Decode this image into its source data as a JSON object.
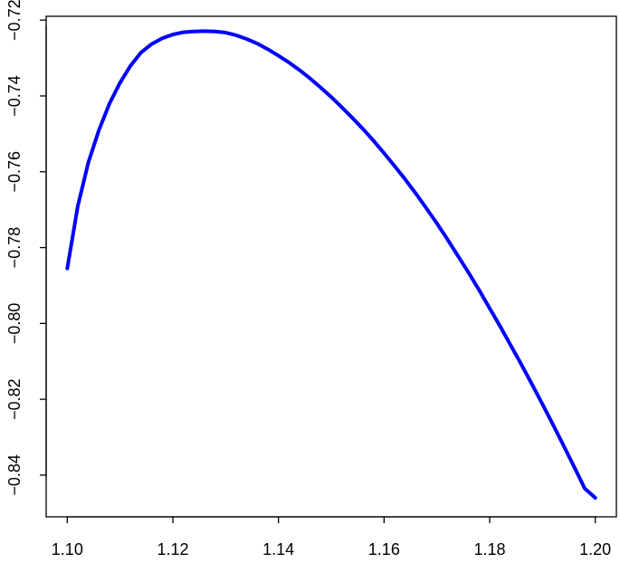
{
  "chart_data": {
    "type": "line",
    "title": "",
    "xlabel": "",
    "ylabel": "",
    "xlim": [
      1.096,
      1.204
    ],
    "ylim": [
      -0.851,
      -0.719
    ],
    "x_ticks": [
      1.1,
      1.12,
      1.14,
      1.16,
      1.18,
      1.2
    ],
    "x_tick_labels": [
      "1.10",
      "1.12",
      "1.14",
      "1.16",
      "1.18",
      "1.20"
    ],
    "y_ticks": [
      -0.72,
      -0.74,
      -0.76,
      -0.78,
      -0.8,
      -0.82,
      -0.84
    ],
    "y_tick_labels": [
      "−0.72",
      "−0.74",
      "−0.76",
      "−0.78",
      "−0.80",
      "−0.82",
      "−0.84"
    ],
    "grid": false,
    "legend": "none",
    "series": [
      {
        "color": "#0000ff",
        "x": [
          1.1,
          1.102,
          1.104,
          1.106,
          1.108,
          1.11,
          1.112,
          1.114,
          1.116,
          1.118,
          1.12,
          1.122,
          1.124,
          1.126,
          1.128,
          1.13,
          1.132,
          1.134,
          1.136,
          1.138,
          1.14,
          1.142,
          1.144,
          1.146,
          1.148,
          1.15,
          1.152,
          1.154,
          1.156,
          1.158,
          1.16,
          1.162,
          1.164,
          1.166,
          1.168,
          1.17,
          1.172,
          1.174,
          1.176,
          1.178,
          1.18,
          1.182,
          1.184,
          1.186,
          1.188,
          1.19,
          1.192,
          1.194,
          1.196,
          1.198,
          1.2
        ],
        "values": [
          -0.7855,
          -0.769,
          -0.7575,
          -0.749,
          -0.742,
          -0.7365,
          -0.732,
          -0.7285,
          -0.7263,
          -0.7248,
          -0.7238,
          -0.7232,
          -0.723,
          -0.7229,
          -0.723,
          -0.7233,
          -0.724,
          -0.725,
          -0.7262,
          -0.7277,
          -0.7294,
          -0.7312,
          -0.7332,
          -0.7354,
          -0.7378,
          -0.7403,
          -0.743,
          -0.7458,
          -0.7487,
          -0.7518,
          -0.7551,
          -0.7585,
          -0.762,
          -0.7657,
          -0.7696,
          -0.7736,
          -0.7778,
          -0.7822,
          -0.7866,
          -0.7912,
          -0.796,
          -0.8008,
          -0.8058,
          -0.8108,
          -0.816,
          -0.8213,
          -0.8267,
          -0.8322,
          -0.8378,
          -0.8435,
          -0.846
        ]
      }
    ]
  }
}
